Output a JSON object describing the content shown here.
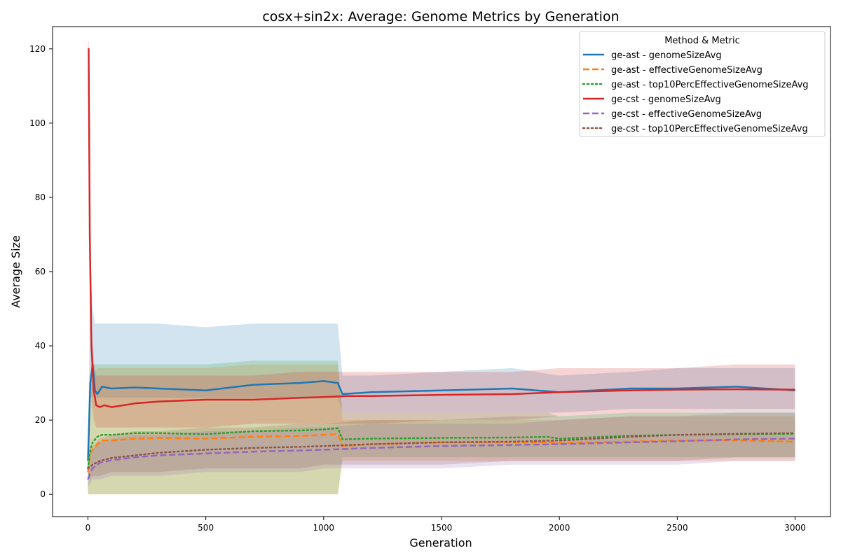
{
  "chart_data": {
    "type": "line",
    "title": "cosx+sin2x: Average: Genome Metrics by Generation",
    "xlabel": "Generation",
    "ylabel": "Average Size",
    "xlim": [
      -150,
      3150
    ],
    "ylim": [
      -6,
      126
    ],
    "xticks": [
      0,
      500,
      1000,
      1500,
      2000,
      2500,
      3000
    ],
    "yticks": [
      0,
      20,
      40,
      60,
      80,
      100,
      120
    ],
    "grid": false,
    "legend": {
      "title": "Method & Metric",
      "placement": "top-right"
    },
    "series": [
      {
        "name": "ge-ast - genomeSizeAvg",
        "color": "#1f77b4",
        "style": "solid",
        "x": [
          0,
          10,
          20,
          30,
          40,
          60,
          100,
          200,
          300,
          500,
          700,
          900,
          1000,
          1060,
          1080,
          1200,
          1500,
          1800,
          2000,
          2300,
          2500,
          2750,
          3000
        ],
        "y": [
          9,
          30,
          35,
          28,
          27,
          29,
          28.5,
          28.8,
          28.5,
          28,
          29.5,
          30,
          30.5,
          30,
          27,
          27.5,
          28,
          28.5,
          27.5,
          28.5,
          28.5,
          29,
          28
        ],
        "band_lower": [
          0,
          26,
          26,
          26,
          26,
          26,
          26,
          26,
          26,
          26,
          26,
          26,
          26,
          26,
          22,
          22,
          22,
          22,
          22,
          23,
          23,
          23,
          23
        ],
        "band_upper": [
          9,
          62,
          50,
          46,
          46,
          46,
          46,
          46,
          46,
          45,
          46,
          46,
          46,
          46,
          32,
          32,
          33,
          34,
          32,
          33,
          34,
          34,
          34
        ]
      },
      {
        "name": "ge-ast - effectiveGenomeSizeAvg",
        "color": "#ff7f0e",
        "style": "dashed",
        "x": [
          0,
          10,
          20,
          40,
          60,
          100,
          200,
          300,
          500,
          700,
          900,
          1000,
          1060,
          1080,
          1200,
          1500,
          1800,
          1950,
          2000,
          2300,
          2500,
          2750,
          3000
        ],
        "y": [
          6,
          11,
          12,
          13.5,
          14.5,
          14.5,
          15,
          15.2,
          15,
          15.5,
          15.7,
          16,
          16.2,
          13,
          13.5,
          14,
          14,
          14,
          13.8,
          14.2,
          14.5,
          14.5,
          14.2
        ],
        "band_lower": [
          0,
          0,
          0,
          0,
          0,
          0,
          0,
          0,
          0,
          0,
          0,
          0,
          0,
          9,
          9,
          9,
          9,
          9,
          9,
          9,
          9,
          9,
          9
        ],
        "band_upper": [
          12,
          30,
          32,
          34,
          34,
          34,
          34,
          34,
          34,
          35,
          35,
          35,
          35,
          20,
          20,
          20,
          20,
          20,
          20,
          21,
          21,
          21,
          21
        ]
      },
      {
        "name": "ge-ast - top10PercEffectiveGenomeSizeAvg",
        "color": "#2ca02c",
        "style": "dotted",
        "x": [
          0,
          10,
          20,
          40,
          60,
          100,
          200,
          300,
          500,
          700,
          900,
          1000,
          1060,
          1080,
          1200,
          1500,
          1800,
          1950,
          2000,
          2300,
          2500,
          2750,
          3000
        ],
        "y": [
          7,
          12,
          14,
          15.5,
          16,
          16,
          16.5,
          16.5,
          16.2,
          17,
          17.2,
          17.5,
          17.8,
          14.8,
          15,
          15.2,
          15.3,
          15.5,
          15,
          15.8,
          16,
          16.2,
          16.3
        ],
        "band_lower": [
          0,
          0,
          0,
          0,
          0,
          0,
          0,
          0,
          0,
          0,
          0,
          0,
          0,
          10,
          10,
          10,
          10,
          10,
          10,
          10,
          10,
          10,
          10
        ],
        "band_upper": [
          14,
          32,
          35,
          35,
          35,
          35,
          35,
          35,
          35,
          36,
          36,
          36,
          36,
          22,
          22,
          22,
          22,
          22,
          21,
          22,
          22,
          22,
          22
        ]
      },
      {
        "name": "ge-cst - genomeSizeAvg",
        "color": "#d62728",
        "style": "solid",
        "x": [
          0,
          3,
          8,
          15,
          25,
          35,
          50,
          70,
          100,
          200,
          300,
          500,
          700,
          900,
          1000,
          1100,
          1200,
          1500,
          1800,
          2000,
          2300,
          2500,
          2750,
          3000
        ],
        "y": [
          120,
          120,
          70,
          40,
          28,
          24,
          23.5,
          24,
          23.5,
          24.5,
          25,
          25.5,
          25.5,
          26,
          26.2,
          26.5,
          26.5,
          26.8,
          27,
          27.5,
          28,
          28.2,
          28.3,
          28.2
        ],
        "band_lower": [
          118,
          100,
          50,
          25,
          20,
          18,
          18,
          18,
          18,
          18,
          18,
          18,
          19,
          19,
          19,
          19,
          19,
          20,
          20,
          21,
          22,
          22,
          23,
          23
        ],
        "band_upper": [
          122,
          122,
          80,
          45,
          36,
          32,
          32,
          32,
          32,
          32,
          32,
          32,
          32,
          33,
          33,
          33,
          33,
          33,
          33,
          34,
          34,
          34,
          35,
          35
        ]
      },
      {
        "name": "ge-cst - effectiveGenomeSizeAvg",
        "color": "#9467bd",
        "style": "dashed",
        "x": [
          0,
          10,
          20,
          50,
          100,
          200,
          300,
          500,
          700,
          900,
          1000,
          1200,
          1500,
          1800,
          2000,
          2300,
          2500,
          2750,
          3000
        ],
        "y": [
          4,
          6,
          7,
          8.5,
          9.2,
          10,
          10.5,
          11,
          11.5,
          11.8,
          12,
          12.5,
          13,
          13.3,
          13.5,
          14,
          14.3,
          14.8,
          15
        ],
        "band_lower": [
          2,
          3,
          4,
          4,
          5,
          5,
          5,
          6,
          6,
          6,
          7,
          7,
          7,
          8,
          8,
          8,
          8,
          9,
          9
        ],
        "band_upper": [
          6,
          9,
          12,
          14,
          15,
          16,
          16,
          17,
          17,
          18,
          18,
          19,
          19,
          19,
          20,
          21,
          21,
          22,
          22
        ]
      },
      {
        "name": "ge-cst - top10PercEffectiveGenomeSizeAvg",
        "color": "#8c564b",
        "style": "dotted",
        "x": [
          0,
          10,
          20,
          50,
          100,
          200,
          300,
          500,
          700,
          900,
          1000,
          1200,
          1500,
          1800,
          2000,
          2300,
          2500,
          2750,
          3000
        ],
        "y": [
          7,
          7.5,
          8,
          9,
          9.8,
          10.5,
          11.2,
          12,
          12.5,
          12.8,
          13,
          13.5,
          14,
          14.2,
          14.5,
          15.5,
          16,
          16.3,
          16.5
        ],
        "band_lower": [
          4,
          4,
          5,
          5,
          6,
          6,
          6,
          7,
          7,
          7,
          8,
          8,
          8,
          9,
          9,
          9,
          9,
          10,
          10
        ],
        "band_upper": [
          10,
          11,
          13,
          15,
          16,
          17,
          17,
          18,
          18,
          19,
          19,
          20,
          20,
          21,
          21,
          22,
          22,
          23,
          23
        ]
      }
    ]
  }
}
